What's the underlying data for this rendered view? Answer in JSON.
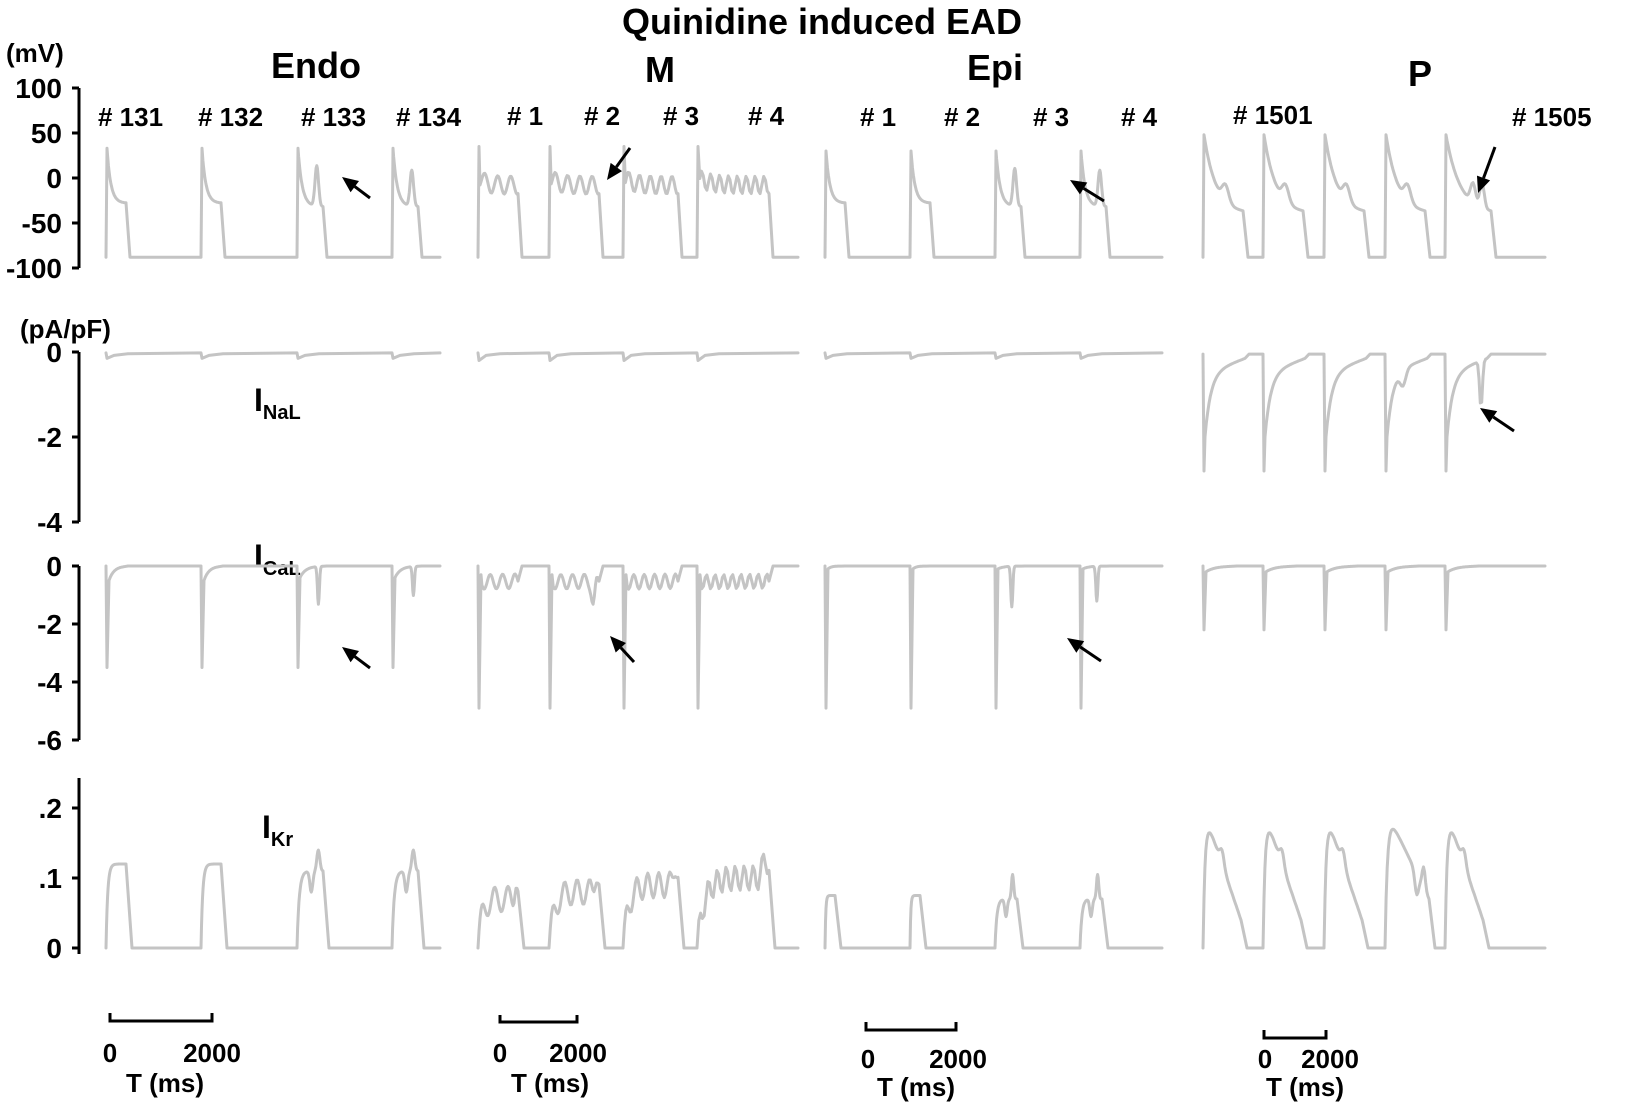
{
  "title": "Quinidine induced EAD",
  "columns": [
    {
      "label": "Endo",
      "beats": [
        "# 131",
        "# 132",
        "# 133",
        "# 134"
      ]
    },
    {
      "label": "M",
      "beats": [
        "# 1",
        "# 2",
        "# 3",
        "# 4"
      ]
    },
    {
      "label": "Epi",
      "beats": [
        "# 1",
        "# 2",
        "# 3",
        "# 4"
      ]
    },
    {
      "label": "P",
      "beats": [
        "# 1501",
        "# 1505"
      ]
    }
  ],
  "units": {
    "voltage": "(mV)",
    "current": "(pA/pF)"
  },
  "current_labels": {
    "nal": {
      "main": "I",
      "sub": "NaL"
    },
    "cal": {
      "main": "I",
      "sub": "CaL"
    },
    "kr": {
      "main": "I",
      "sub": "Kr"
    }
  },
  "scale_bar": {
    "start": "0",
    "end": "2000",
    "axis_label": "T (ms)"
  },
  "colors": {
    "trace": "#c4c4c4",
    "axis": "#000000",
    "arrow": "#000000"
  },
  "chart_data": [
    {
      "type": "line",
      "title": "Quinidine induced EAD",
      "panel": "membrane potential",
      "ylabel": "(mV)",
      "ylim": [
        -100,
        100
      ],
      "yticks": [
        100,
        50,
        0,
        -50,
        -100
      ],
      "series": [
        {
          "name": "Endo",
          "beats": [
            "# 131",
            "# 132",
            "# 133",
            "# 134"
          ],
          "peak": 33,
          "plateau": -28,
          "rest": -88,
          "ead_beats": [
            "# 133",
            "# 134"
          ]
        },
        {
          "name": "M",
          "beats": [
            "# 1",
            "# 2",
            "# 3",
            "# 4"
          ],
          "peak": 35,
          "oscillation_range": [
            -20,
            10
          ],
          "rest": -88
        },
        {
          "name": "Epi",
          "beats": [
            "# 1",
            "# 2",
            "# 3",
            "# 4"
          ],
          "peak": 30,
          "plateau": -28,
          "rest": -88,
          "ead_beats": [
            "# 3",
            "# 4"
          ]
        },
        {
          "name": "P",
          "beats": [
            "# 1501",
            "# 1505"
          ],
          "peak": 48,
          "plateau": -30,
          "rest": -88
        }
      ]
    },
    {
      "type": "line",
      "panel": "INaL",
      "ylabel": "(pA/pF)",
      "ylim": [
        -4,
        0
      ],
      "yticks": [
        0,
        -2,
        -4
      ],
      "series": [
        {
          "name": "Endo",
          "min": -0.15
        },
        {
          "name": "M",
          "min": -0.2
        },
        {
          "name": "Epi",
          "min": -0.15
        },
        {
          "name": "P",
          "min": -2.8,
          "plateau": -0.6
        }
      ]
    },
    {
      "type": "line",
      "panel": "ICaL",
      "ylim": [
        -6,
        0
      ],
      "yticks": [
        0,
        -2,
        -4,
        -6
      ],
      "series": [
        {
          "name": "Endo",
          "spike": -3.5,
          "ead_peak": -1.7
        },
        {
          "name": "M",
          "spike": -4.9,
          "oscillation": -0.6
        },
        {
          "name": "Epi",
          "spike": -4.9,
          "ead_peak": -1.5
        },
        {
          "name": "P",
          "spike": -2.2
        }
      ]
    },
    {
      "type": "line",
      "panel": "IKr",
      "ylim": [
        0,
        0.25
      ],
      "yticks": [
        ".2",
        ".1",
        "0"
      ],
      "series": [
        {
          "name": "Endo",
          "peak": 0.12,
          "ead_peak": 0.13
        },
        {
          "name": "M",
          "peak": 0.11,
          "max": 0.135
        },
        {
          "name": "Epi",
          "peak": 0.08,
          "ead_peak": 0.1
        },
        {
          "name": "P",
          "peak": 0.19
        }
      ]
    }
  ]
}
